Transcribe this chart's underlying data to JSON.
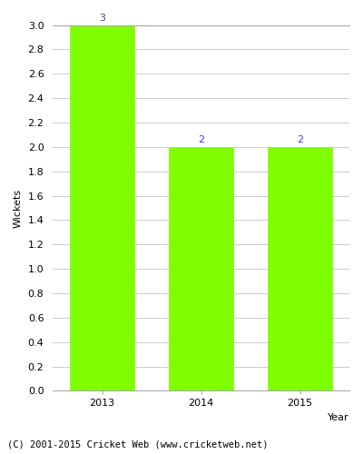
{
  "categories": [
    "2013",
    "2014",
    "2015"
  ],
  "values": [
    3,
    2,
    2
  ],
  "bar_color": "#7fff00",
  "bar_edgecolor": "#7fff00",
  "label_color": "#4040cc",
  "label_fontsize": 8,
  "xlabel": "Year",
  "ylabel": "Wickets",
  "ylim": [
    0,
    3.0
  ],
  "ytick_step": 0.2,
  "background_color": "#ffffff",
  "grid_color": "#cccccc",
  "xlabel_fontsize": 8,
  "ylabel_fontsize": 8,
  "tick_fontsize": 8,
  "footer_text": "(C) 2001-2015 Cricket Web (www.cricketweb.net)",
  "footer_fontsize": 7.5
}
